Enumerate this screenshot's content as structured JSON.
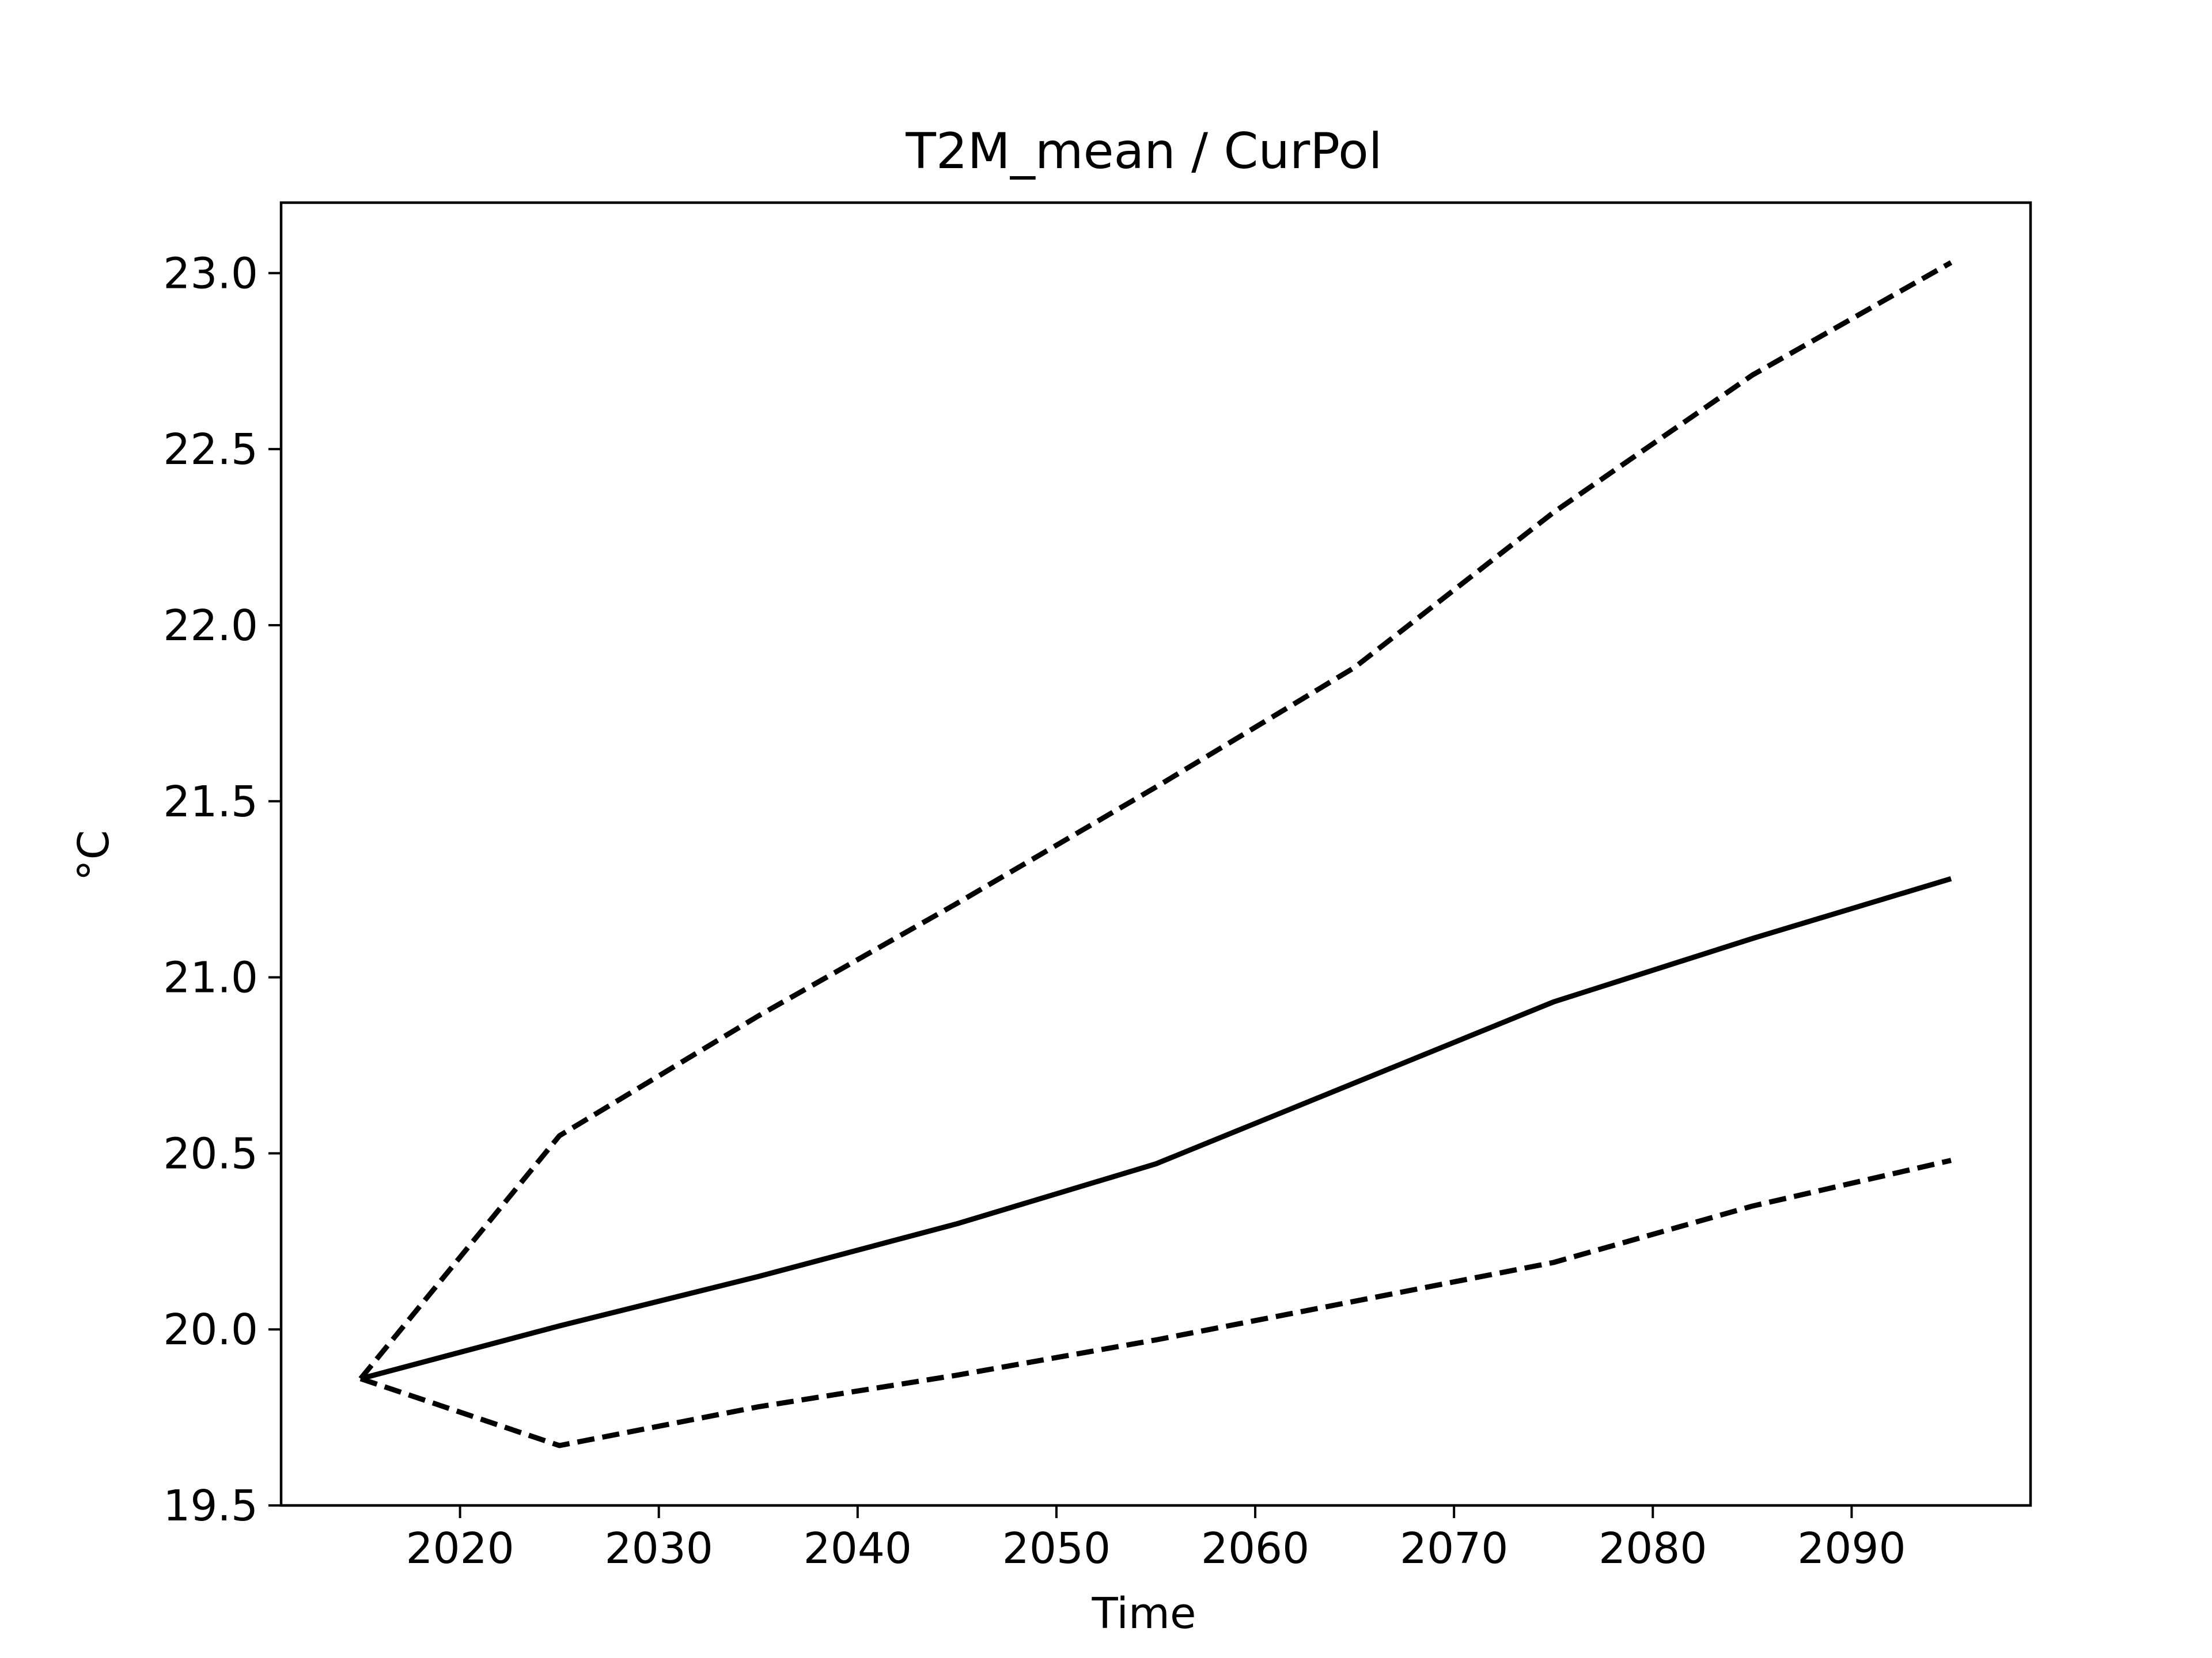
{
  "chart_data": {
    "type": "line",
    "title": "T2M_mean / CurPol",
    "xlabel": "Time",
    "ylabel": "°C",
    "xlim": [
      2011.0,
      2099.0
    ],
    "ylim": [
      19.5,
      23.2
    ],
    "x_ticks": [
      2020,
      2030,
      2040,
      2050,
      2060,
      2070,
      2080,
      2090
    ],
    "x_tick_labels": [
      "2020",
      "2030",
      "2040",
      "2050",
      "2060",
      "2070",
      "2080",
      "2090"
    ],
    "y_ticks": [
      19.5,
      20.0,
      20.5,
      21.0,
      21.5,
      22.0,
      22.5,
      23.0
    ],
    "y_tick_labels": [
      "19.5",
      "20.0",
      "20.5",
      "21.0",
      "21.5",
      "22.0",
      "22.5",
      "23.0"
    ],
    "grid": false,
    "x": [
      2015,
      2025,
      2035,
      2045,
      2055,
      2065,
      2075,
      2085,
      2095
    ],
    "series": [
      {
        "style": "solid",
        "color": "#000000",
        "values": [
          19.86,
          20.01,
          20.15,
          20.3,
          20.47,
          20.7,
          20.93,
          21.11,
          21.28
        ]
      },
      {
        "style": "dashed",
        "color": "#000000",
        "values": [
          19.86,
          20.55,
          20.89,
          21.21,
          21.54,
          21.88,
          22.32,
          22.71,
          23.03
        ]
      },
      {
        "style": "dashed",
        "color": "#000000",
        "values": [
          19.86,
          19.67,
          19.78,
          19.87,
          19.97,
          20.08,
          20.19,
          20.35,
          20.48
        ]
      }
    ]
  }
}
